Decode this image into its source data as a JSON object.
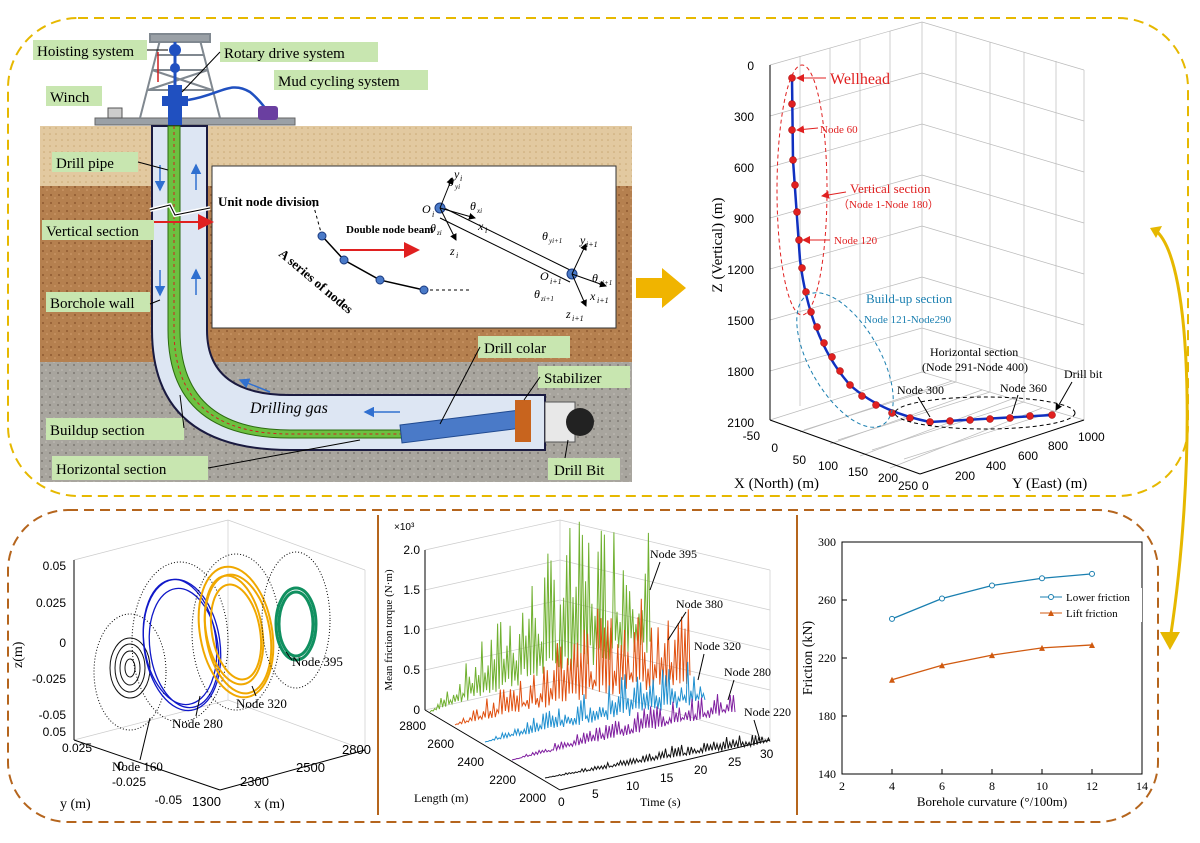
{
  "colors": {
    "top_border": "#e6b800",
    "bottom_border": "#b5651d",
    "label_bg": "#c8e6b0",
    "red": "#e02020",
    "blue_line": "#1030c0",
    "teal": "#1a7fb0",
    "orange": "#d05a10",
    "arrow_gold": "#f0b400"
  },
  "schematic": {
    "labels": {
      "hoisting": "Hoisting system",
      "rotary": "Rotary drive system",
      "mud": "Mud cycling system",
      "winch": "Winch",
      "drill_pipe": "Drill pipe",
      "vertical": "Vertical section",
      "borehole_wall": "Borchole wall",
      "buildup": "Buildup section",
      "horizontal": "Horizontal section",
      "drill_colar": "Drill colar",
      "stabilizer": "Stabilizer",
      "drill_bit": "Drill Bit",
      "drilling_gas": "Drilling gas"
    },
    "inset": {
      "unit_node_division": "Unit node division",
      "double_node_beam": "Double node beam",
      "series_of_nodes": "A series of nodes"
    }
  },
  "trajectory_3d": {
    "z_axis_label": "Z (Vertical)  (m)",
    "x_axis_label": "X (North)  (m)",
    "y_axis_label": "Y (East)  (m)",
    "z_ticks": [
      "0",
      "300",
      "600",
      "900",
      "1200",
      "1500",
      "1800",
      "2100"
    ],
    "x_ticks": [
      "-50",
      "0",
      "50",
      "100",
      "150",
      "200",
      "250"
    ],
    "y_ticks": [
      "0",
      "200",
      "400",
      "600",
      "800",
      "1000"
    ],
    "annotations": {
      "wellhead": "Wellhead",
      "node60": "Node 60",
      "vertical_section": "Vertical section",
      "vertical_range": "（Node 1-Node 180）",
      "node120": "Node 120",
      "buildup_section": "Build-up section",
      "buildup_range": "Node 121-Node290",
      "horizontal_section": "Horizontal section",
      "horizontal_range": "(Node 291-Node 400)",
      "drill_bit": "Drill bit",
      "node300": "Node 300",
      "node360": "Node 360"
    }
  },
  "orbits": {
    "z_label": "z(m)",
    "y_label": "y (m)",
    "x_label": "x (m)",
    "z_ticks": [
      "0.05",
      "0.025",
      "0",
      "-0.025",
      "-0.05"
    ],
    "y_ticks": [
      "0.05",
      "0.025",
      "0",
      "-0.025",
      "-0.05"
    ],
    "x_ticks": [
      "1300",
      "2300",
      "2500",
      "2800"
    ],
    "nodes": [
      "Node 160",
      "Node 280",
      "Node 320",
      "Node 395"
    ]
  },
  "torque": {
    "y_label": "Mean friction torque (N·m)",
    "exponent": "×10³",
    "y_ticks": [
      "2.0",
      "1.5",
      "1.0",
      "0.5",
      "0"
    ],
    "length_label": "Length (m)",
    "length_ticks": [
      "2800",
      "2600",
      "2400",
      "2200",
      "2000"
    ],
    "time_label": "Time (s)",
    "time_ticks": [
      "0",
      "5",
      "10",
      "15",
      "20",
      "25",
      "30"
    ],
    "nodes": [
      "Node 395",
      "Node 380",
      "Node 320",
      "Node 280",
      "Node 220"
    ]
  },
  "chart_data": {
    "type": "line",
    "xlabel": "Borehole curvature (°/100m)",
    "ylabel": "Friction (kN)",
    "xlim": [
      2,
      14
    ],
    "ylim": [
      140,
      300
    ],
    "xticks": [
      "2",
      "4",
      "6",
      "8",
      "10",
      "12",
      "14"
    ],
    "yticks": [
      "140",
      "180",
      "220",
      "260",
      "300"
    ],
    "x": [
      4,
      6,
      8,
      10,
      12
    ],
    "series": [
      {
        "name": "Lower friction",
        "values": [
          247,
          261,
          270,
          275,
          278
        ],
        "color": "#1a7fb0",
        "marker": "circle"
      },
      {
        "name": "Lift friction",
        "values": [
          205,
          215,
          222,
          227,
          229
        ],
        "color": "#d05a10",
        "marker": "triangle"
      }
    ],
    "legend": "right"
  }
}
